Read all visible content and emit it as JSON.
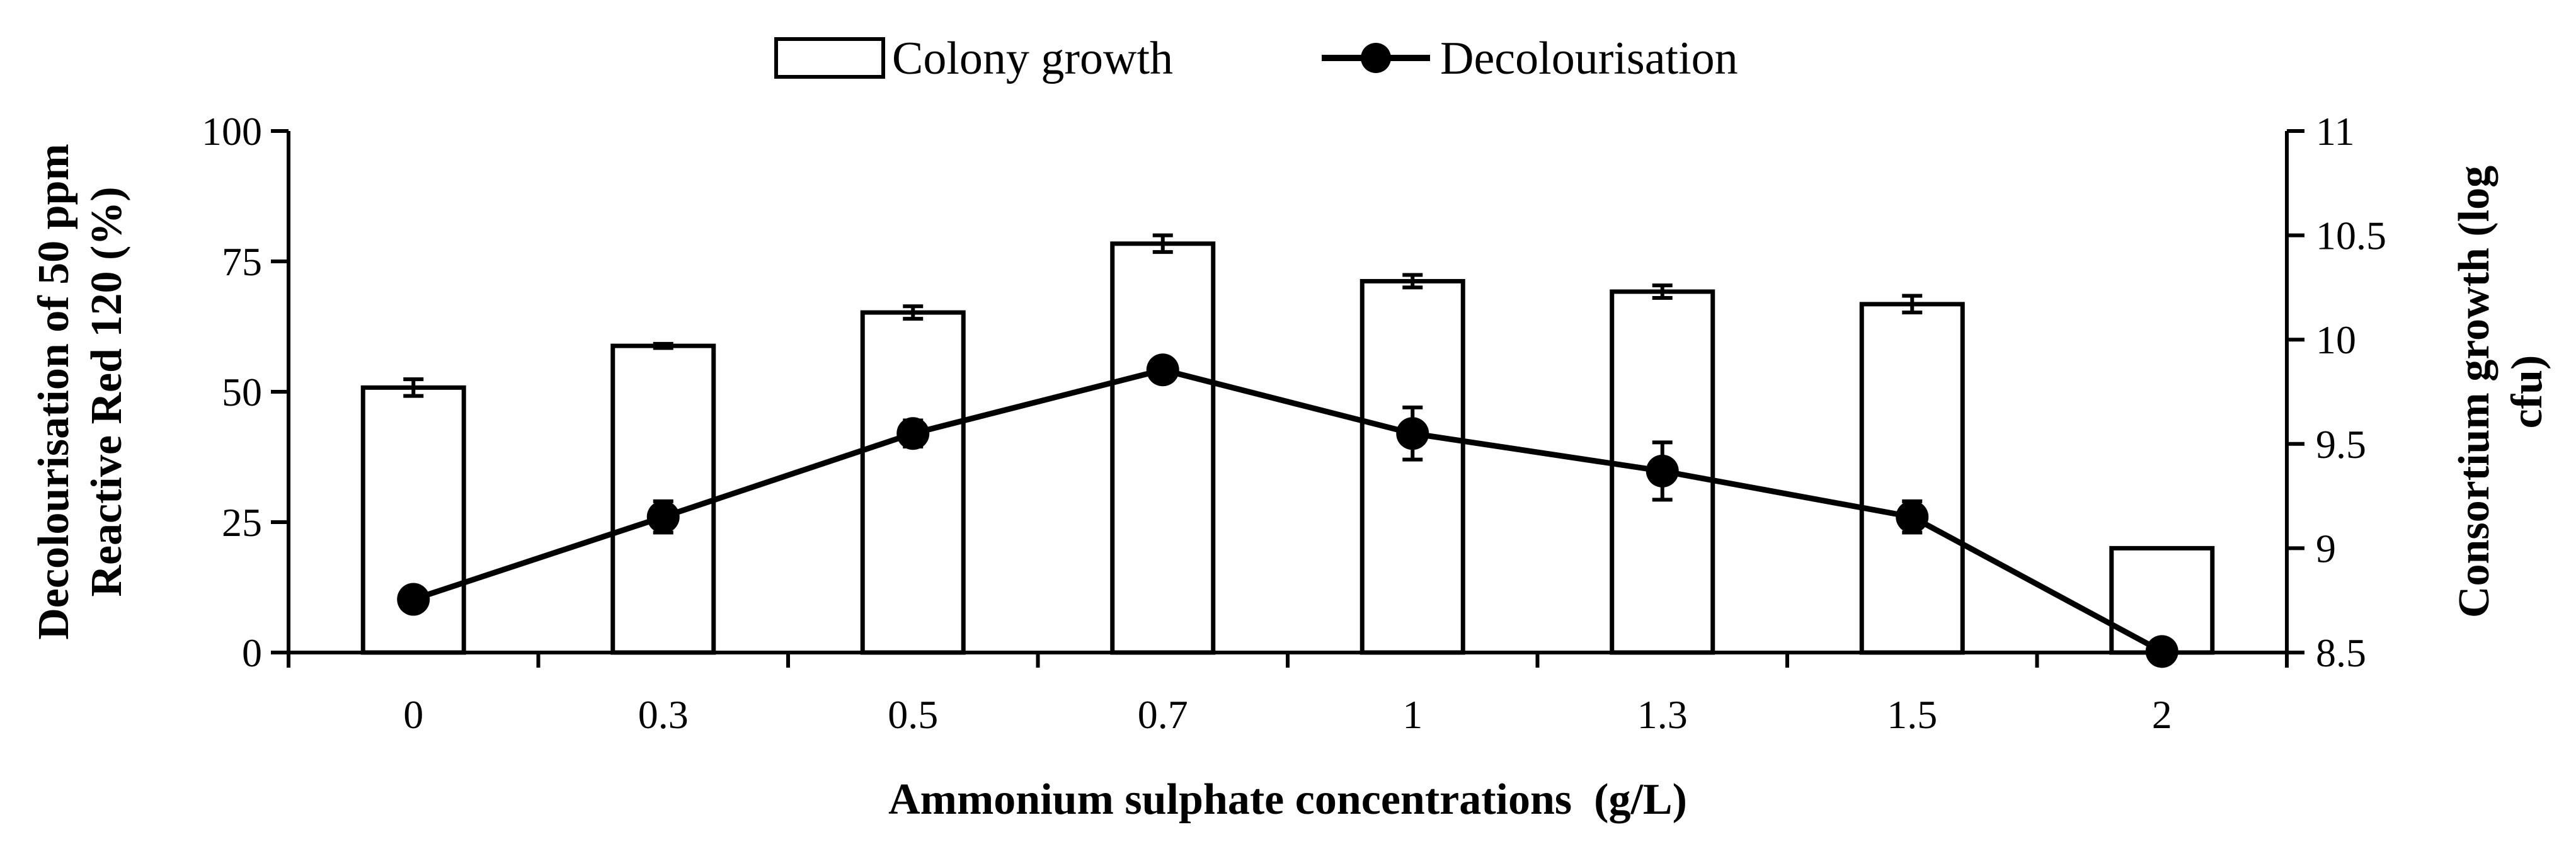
{
  "chart_data": {
    "type": "bar+line",
    "title": "",
    "categories": [
      "0",
      "0.3",
      "0.5",
      "0.7",
      "1",
      "1.3",
      "1.5",
      "2"
    ],
    "xlabel": "Ammonium sulphate concentrations  (g/L)",
    "ylabel_left": [
      "Decolourisation of 50 ppm",
      "Reactive Red 120 (%)"
    ],
    "ylabel_right": [
      "Consortium growth (log",
      "cfu)"
    ],
    "ylim_left": [
      0,
      100
    ],
    "ylim_right": [
      8.5,
      11
    ],
    "yticks_left": [
      "0",
      "25",
      "50",
      "75",
      "100"
    ],
    "yticks_right": [
      "8.5",
      "9",
      "9.5",
      "10",
      "10.5",
      "11"
    ],
    "grid": false,
    "legend_position": "top-center",
    "series": [
      {
        "name": "Colony growth",
        "type": "bar",
        "axis": "right",
        "values": [
          9.77,
          9.97,
          10.13,
          10.46,
          10.28,
          10.23,
          10.17,
          9.0
        ],
        "errors": [
          0.04,
          0.01,
          0.03,
          0.04,
          0.03,
          0.03,
          0.04,
          0.0
        ]
      },
      {
        "name": "Decolourisation",
        "type": "line",
        "axis": "left",
        "values": [
          10.2,
          26.0,
          42.0,
          54.2,
          42.0,
          34.8,
          26.0,
          0.2
        ],
        "errors": [
          1.0,
          3.0,
          2.5,
          0.5,
          5.0,
          5.5,
          3.0,
          0.0
        ]
      }
    ]
  }
}
